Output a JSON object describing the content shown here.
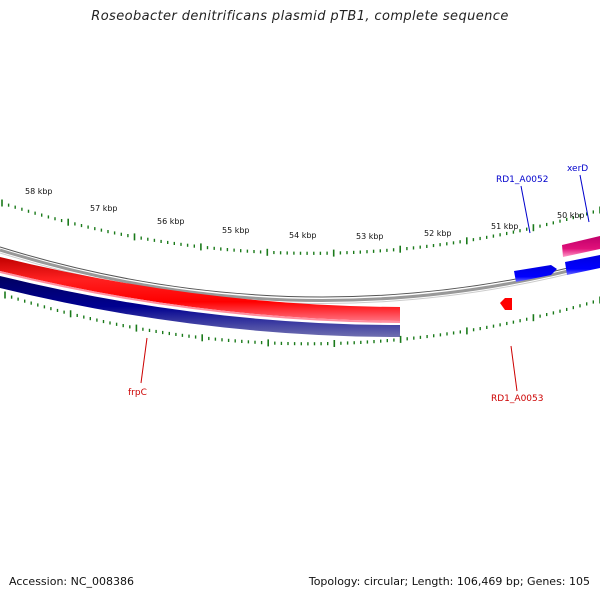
{
  "title": "Roseobacter denitrificans plasmid pTB1, complete sequence",
  "footer": {
    "accession": "Accession: NC_008386",
    "summary": "Topology: circular; Length: 106,469 bp; Genes: 105"
  },
  "colors": {
    "forward_cds": "#ff0000",
    "reverse_cds": "#000080",
    "other_cds_blue": "#0000ff",
    "other_cds_pink": "#e0107a",
    "backbone": "#888888",
    "ticks": "#1a7a1a",
    "label_red": "#cc0000",
    "label_blue": "#0000cc"
  },
  "scale": {
    "unit": "kbp",
    "labels": [
      "58 kbp",
      "57 kbp",
      "56 kbp",
      "55 kbp",
      "54 kbp",
      "53 kbp",
      "52 kbp",
      "51 kbp",
      "50 kbp"
    ]
  },
  "genes": [
    {
      "name": "RD1_A0052",
      "color": "#0000cc"
    },
    {
      "name": "xerD",
      "color": "#0000cc"
    },
    {
      "name": "frpC",
      "color": "#cc0000"
    },
    {
      "name": "RD1_A0053",
      "color": "#cc0000"
    }
  ]
}
